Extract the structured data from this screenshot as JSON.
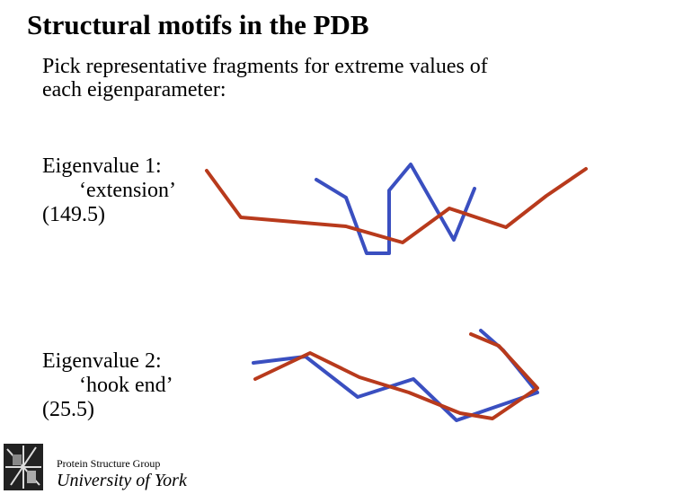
{
  "header": {
    "title": "Structural motifs in the PDB"
  },
  "intro": {
    "lines": [
      "Pick representative fragments for extreme values of",
      "each eigenparameter:"
    ]
  },
  "eigenvalues": [
    {
      "label": "Eigenvalue 1:",
      "name": "‘extension’",
      "value": "(149.5)"
    },
    {
      "label": "Eigenvalue 2:",
      "name": "‘hook end’",
      "value": "(25.5)"
    }
  ],
  "footer": {
    "group": "Protein Structure Group",
    "university": "University of York"
  }
}
